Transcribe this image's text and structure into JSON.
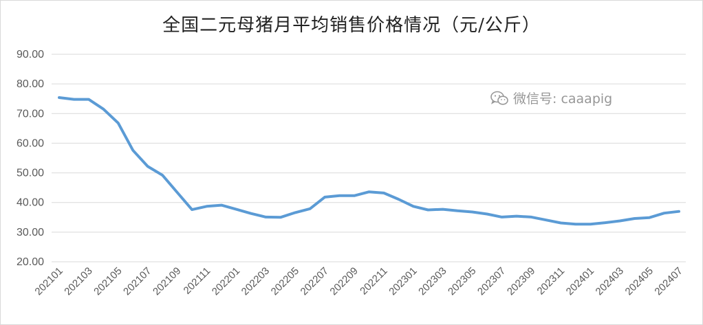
{
  "title": "全国二元母猪月平均销售价格情况（元/公斤）",
  "watermark": {
    "text": "微信号: caaapig",
    "icon": "wechat-icon"
  },
  "colors": {
    "line": "#5b9bd5",
    "grid": "#d9d9d9",
    "text": "#595959"
  },
  "chart_data": {
    "type": "line",
    "title": "全国二元母猪月平均销售价格情况（元/公斤）",
    "ylim": [
      20,
      90
    ],
    "yticks": [
      "20.00",
      "30.00",
      "40.00",
      "50.00",
      "60.00",
      "70.00",
      "80.00",
      "90.00"
    ],
    "grid": true,
    "categories": [
      "202101",
      "202102",
      "202103",
      "202104",
      "202105",
      "202106",
      "202107",
      "202108",
      "202109",
      "202110",
      "202111",
      "202112",
      "202201",
      "202202",
      "202203",
      "202204",
      "202205",
      "202206",
      "202207",
      "202208",
      "202209",
      "202210",
      "202211",
      "202212",
      "202301",
      "202302",
      "202303",
      "202304",
      "202305",
      "202306",
      "202307",
      "202308",
      "202309",
      "202310",
      "202311",
      "202312",
      "202401",
      "202402",
      "202403",
      "202404",
      "202405",
      "202406",
      "202407"
    ],
    "tick_labels": [
      "202101",
      "202103",
      "202105",
      "202107",
      "202109",
      "202111",
      "202201",
      "202203",
      "202205",
      "202207",
      "202209",
      "202211",
      "202301",
      "202303",
      "202305",
      "202307",
      "202309",
      "202311",
      "202401",
      "202403",
      "202405",
      "202407"
    ],
    "values": [
      75.4,
      74.8,
      74.8,
      71.5,
      66.8,
      57.6,
      52.2,
      49.2,
      43.4,
      37.6,
      38.7,
      39.1,
      37.7,
      36.3,
      35.1,
      35.0,
      36.6,
      37.9,
      41.8,
      42.3,
      42.3,
      43.6,
      43.2,
      41.1,
      38.7,
      37.5,
      37.7,
      37.2,
      36.8,
      36.1,
      35.1,
      35.4,
      35.1,
      34.1,
      33.1,
      32.7,
      32.7,
      33.2,
      33.8,
      34.6,
      34.9,
      36.4,
      37.0
    ]
  }
}
